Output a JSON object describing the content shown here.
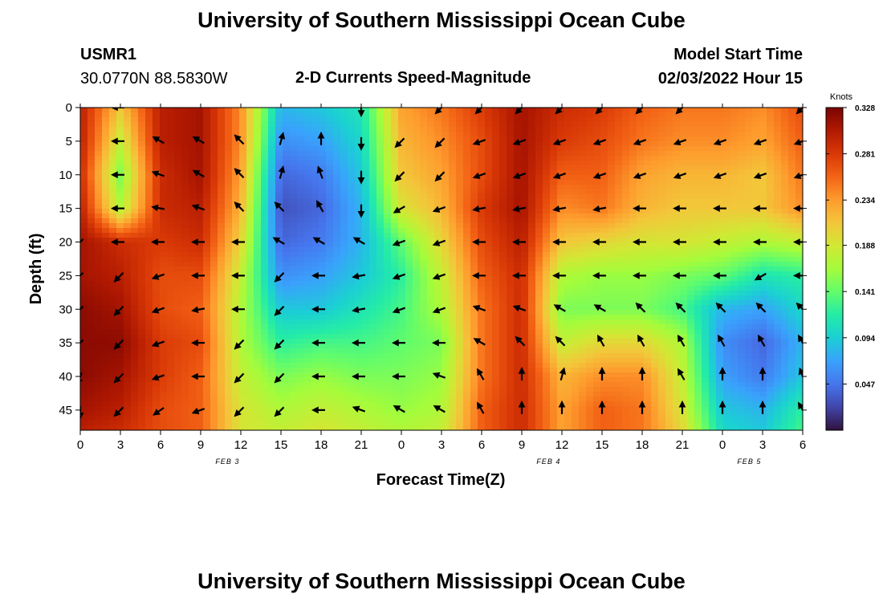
{
  "header": {
    "title": "University of Southern Mississippi Ocean Cube",
    "station": "USMR1",
    "coords": "30.0770N  88.5830W",
    "subtitle": "2-D Currents Speed-Magnitude",
    "model_label": "Model Start Time",
    "model_time": "02/03/2022 Hour 15"
  },
  "footer": {
    "title": "University of Southern Mississippi Ocean Cube"
  },
  "chart_data": {
    "type": "heatmap",
    "title": "2-D Currents Speed-Magnitude",
    "xlabel": "Forecast Time(Z)",
    "ylabel": "Depth (ft)",
    "x_ticks": [
      "0",
      "3",
      "6",
      "9",
      "12",
      "15",
      "18",
      "21",
      "0",
      "3",
      "6",
      "9",
      "12",
      "15",
      "18",
      "21",
      "0",
      "3",
      "6"
    ],
    "y_ticks": [
      "0",
      "5",
      "10",
      "15",
      "20",
      "25",
      "30",
      "35",
      "40",
      "45"
    ],
    "xlim": [
      0,
      54
    ],
    "ylim": [
      0,
      48
    ],
    "date_labels": [
      {
        "text": "FEB 3",
        "hour": 11
      },
      {
        "text": "FEB 4",
        "hour": 35
      },
      {
        "text": "FEB 5",
        "hour": 50
      }
    ],
    "colorbar": {
      "label": "Knots",
      "ticks": [
        "0.328",
        "0.281",
        "0.234",
        "0.188",
        "0.141",
        "0.094",
        "0.047"
      ],
      "min": 0.0,
      "max": 0.328,
      "colors": [
        "#30123b",
        "#4145ab",
        "#4675ed",
        "#39a2fc",
        "#1bcfd4",
        "#24eca6",
        "#61fc6c",
        "#a4fc3b",
        "#d1e834",
        "#f3c63a",
        "#fe9b2d",
        "#f36315",
        "#d93806",
        "#b11901",
        "#7a0402"
      ]
    },
    "speed_grid": {
      "x_hours": [
        0,
        3,
        6,
        9,
        12,
        15,
        18,
        21,
        24,
        27,
        30,
        33,
        36,
        39,
        42,
        45,
        48,
        51,
        54
      ],
      "depths": [
        0,
        5,
        10,
        15,
        20,
        25,
        30,
        35,
        40,
        45,
        48
      ],
      "values_knots": [
        [
          0.3,
          0.21,
          0.3,
          0.31,
          0.24,
          0.08,
          0.09,
          0.11,
          0.23,
          0.25,
          0.28,
          0.31,
          0.29,
          0.28,
          0.26,
          0.25,
          0.25,
          0.24,
          0.27
        ],
        [
          0.3,
          0.18,
          0.3,
          0.31,
          0.24,
          0.06,
          0.07,
          0.1,
          0.22,
          0.24,
          0.27,
          0.31,
          0.28,
          0.27,
          0.25,
          0.24,
          0.24,
          0.23,
          0.26
        ],
        [
          0.29,
          0.15,
          0.29,
          0.31,
          0.23,
          0.04,
          0.05,
          0.09,
          0.21,
          0.23,
          0.27,
          0.31,
          0.26,
          0.26,
          0.23,
          0.22,
          0.22,
          0.21,
          0.25
        ],
        [
          0.3,
          0.17,
          0.29,
          0.3,
          0.22,
          0.03,
          0.04,
          0.08,
          0.19,
          0.22,
          0.28,
          0.31,
          0.24,
          0.25,
          0.22,
          0.21,
          0.21,
          0.21,
          0.24
        ],
        [
          0.31,
          0.29,
          0.28,
          0.29,
          0.2,
          0.04,
          0.05,
          0.08,
          0.14,
          0.2,
          0.27,
          0.3,
          0.21,
          0.2,
          0.19,
          0.19,
          0.18,
          0.17,
          0.18
        ],
        [
          0.31,
          0.3,
          0.27,
          0.27,
          0.18,
          0.06,
          0.07,
          0.09,
          0.12,
          0.18,
          0.26,
          0.29,
          0.17,
          0.16,
          0.16,
          0.15,
          0.14,
          0.11,
          0.12
        ],
        [
          0.32,
          0.31,
          0.27,
          0.26,
          0.17,
          0.09,
          0.09,
          0.11,
          0.13,
          0.17,
          0.25,
          0.29,
          0.15,
          0.15,
          0.15,
          0.13,
          0.08,
          0.07,
          0.1
        ],
        [
          0.32,
          0.32,
          0.28,
          0.27,
          0.17,
          0.12,
          0.13,
          0.13,
          0.14,
          0.15,
          0.25,
          0.29,
          0.18,
          0.2,
          0.2,
          0.17,
          0.06,
          0.04,
          0.08
        ],
        [
          0.32,
          0.31,
          0.28,
          0.26,
          0.18,
          0.15,
          0.16,
          0.15,
          0.15,
          0.16,
          0.25,
          0.29,
          0.22,
          0.24,
          0.24,
          0.18,
          0.07,
          0.05,
          0.09
        ],
        [
          0.31,
          0.3,
          0.27,
          0.26,
          0.19,
          0.17,
          0.18,
          0.17,
          0.16,
          0.17,
          0.26,
          0.29,
          0.23,
          0.26,
          0.25,
          0.19,
          0.09,
          0.08,
          0.12
        ],
        [
          0.3,
          0.29,
          0.27,
          0.26,
          0.19,
          0.18,
          0.19,
          0.18,
          0.17,
          0.18,
          0.26,
          0.29,
          0.23,
          0.26,
          0.25,
          0.2,
          0.1,
          0.09,
          0.13
        ]
      ]
    },
    "vectors": {
      "x_hours": [
        0,
        3,
        6,
        9,
        12,
        15,
        18,
        21,
        24,
        27,
        30,
        33,
        36,
        39,
        42,
        45,
        48,
        51,
        54
      ],
      "depths": [
        0,
        5,
        10,
        15,
        20,
        25,
        30,
        35,
        40,
        45
      ],
      "direction_deg": [
        [
          null,
          270,
          null,
          null,
          null,
          null,
          null,
          180,
          null,
          225,
          225,
          225,
          225,
          225,
          225,
          225,
          null,
          null,
          225
        ],
        [
          null,
          270,
          300,
          300,
          315,
          15,
          0,
          180,
          225,
          225,
          250,
          250,
          250,
          250,
          250,
          250,
          250,
          250,
          250
        ],
        [
          null,
          270,
          290,
          300,
          315,
          15,
          340,
          180,
          225,
          225,
          250,
          250,
          250,
          250,
          250,
          250,
          250,
          250,
          250
        ],
        [
          null,
          270,
          280,
          290,
          315,
          315,
          330,
          180,
          240,
          250,
          260,
          260,
          260,
          260,
          270,
          270,
          270,
          270,
          270
        ],
        [
          225,
          270,
          270,
          270,
          270,
          300,
          300,
          300,
          250,
          250,
          270,
          270,
          270,
          270,
          270,
          270,
          270,
          270,
          270
        ],
        [
          225,
          225,
          250,
          270,
          270,
          225,
          270,
          260,
          250,
          250,
          270,
          270,
          270,
          270,
          270,
          270,
          270,
          240,
          270
        ],
        [
          225,
          225,
          250,
          260,
          270,
          225,
          270,
          260,
          250,
          250,
          290,
          290,
          300,
          300,
          315,
          315,
          315,
          315,
          315
        ],
        [
          225,
          225,
          250,
          270,
          225,
          225,
          270,
          270,
          270,
          270,
          300,
          315,
          315,
          330,
          330,
          330,
          330,
          330,
          330
        ],
        [
          200,
          225,
          250,
          270,
          225,
          225,
          270,
          270,
          270,
          290,
          330,
          0,
          15,
          0,
          0,
          330,
          0,
          0,
          340
        ],
        [
          180,
          225,
          235,
          250,
          225,
          225,
          270,
          290,
          300,
          300,
          330,
          0,
          0,
          0,
          0,
          0,
          0,
          0,
          330
        ]
      ]
    }
  }
}
